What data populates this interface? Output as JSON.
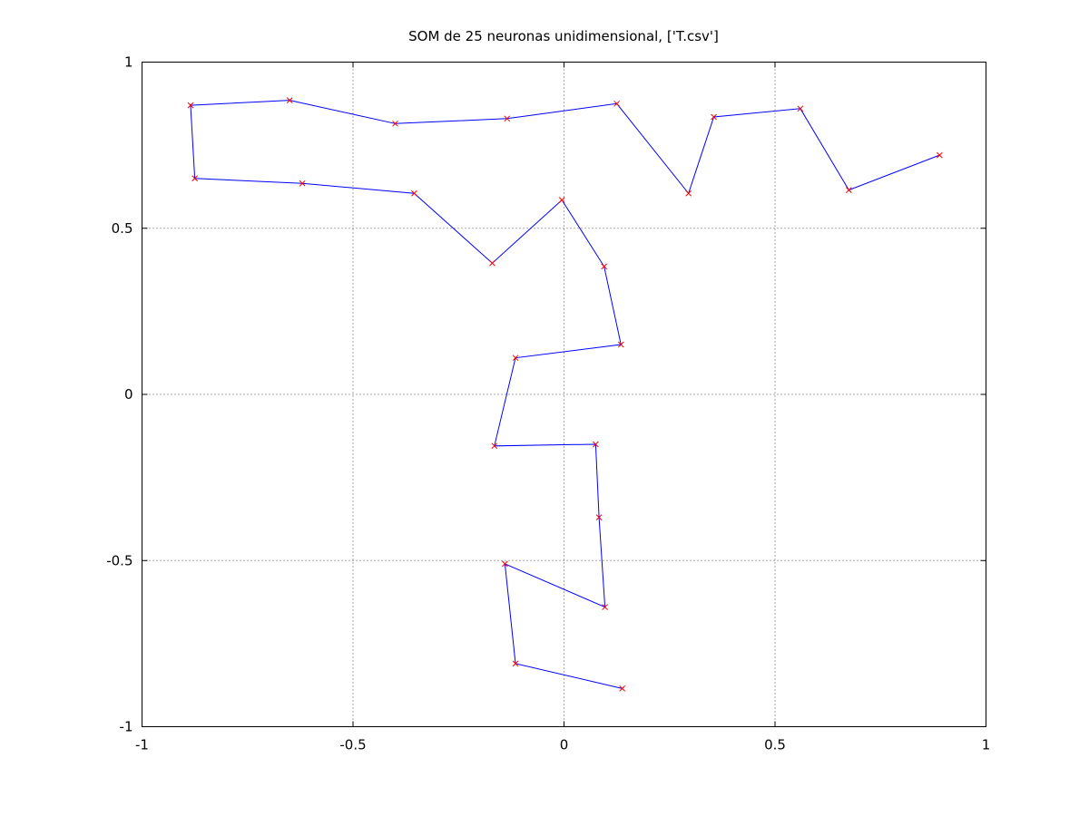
{
  "chart_data": {
    "type": "line",
    "title": "SOM de 25 neuronas unidimensional, ['T.csv']",
    "xlabel": "",
    "ylabel": "",
    "xlim": [
      -1,
      1
    ],
    "ylim": [
      -1,
      1
    ],
    "xticks": [
      -1,
      -0.5,
      0,
      0.5,
      1
    ],
    "yticks": [
      -1,
      -0.5,
      0,
      0.5,
      1
    ],
    "xtick_labels": [
      "-1",
      "-0.5",
      "0",
      "0.5",
      "1"
    ],
    "ytick_labels": [
      "-1",
      "-0.5",
      "0",
      "0.5",
      "1"
    ],
    "grid": true,
    "grid_style": "dotted",
    "marker": "x",
    "line_color": "#0000ff",
    "marker_color": "#ff0000",
    "series": [
      {
        "x": [
          0.89,
          0.675,
          0.56,
          0.355,
          0.295,
          0.125,
          -0.135,
          -0.4,
          -0.65,
          -0.885,
          -0.875,
          -0.62,
          -0.355,
          -0.17,
          -0.005,
          0.095,
          0.135,
          -0.115,
          -0.165,
          0.075,
          0.083,
          0.097,
          -0.14,
          -0.115,
          0.138
        ],
        "y": [
          0.72,
          0.615,
          0.86,
          0.835,
          0.605,
          0.875,
          0.83,
          0.815,
          0.885,
          0.87,
          0.65,
          0.635,
          0.605,
          0.395,
          0.585,
          0.385,
          0.15,
          0.11,
          -0.155,
          -0.15,
          -0.37,
          -0.64,
          -0.51,
          -0.81,
          -0.885
        ]
      }
    ]
  }
}
